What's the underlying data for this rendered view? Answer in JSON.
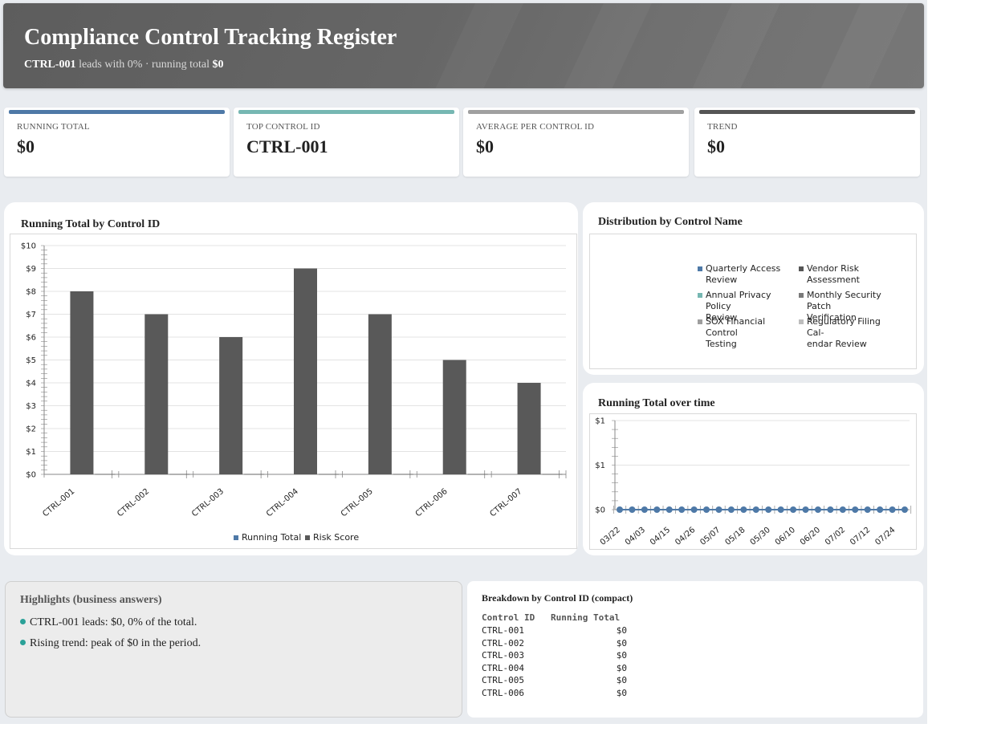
{
  "header": {
    "title": "Compliance Control Tracking Register",
    "subtitle_lead": "CTRL-001",
    "subtitle_mid": " leads with 0% · running total ",
    "subtitle_total": "$0"
  },
  "kpis": [
    {
      "label": "RUNNING TOTAL",
      "value": "$0",
      "color": "#4e79a7"
    },
    {
      "label": "TOP CONTROL ID",
      "value": "CTRL-001",
      "color": "#76b7b2"
    },
    {
      "label": "AVERAGE PER CONTROL ID",
      "value": "$0",
      "color": "#a0a0a0"
    },
    {
      "label": "TREND",
      "value": "$0",
      "color": "#555555"
    }
  ],
  "chart_data": [
    {
      "type": "bar",
      "title": "Running Total by Control ID",
      "categories": [
        "CTRL-001",
        "CTRL-002",
        "CTRL-003",
        "CTRL-004",
        "CTRL-005",
        "CTRL-006",
        "CTRL-007"
      ],
      "series": [
        {
          "name": "Running Total",
          "values": [
            0,
            0,
            0,
            0,
            0,
            0,
            0
          ],
          "color": "#4e79a7"
        },
        {
          "name": "Risk Score",
          "values": [
            8,
            7,
            6,
            9,
            7,
            5,
            4
          ],
          "color": "#595959"
        }
      ],
      "y_ticks": [
        "$0",
        "$1",
        "$2",
        "$3",
        "$4",
        "$5",
        "$6",
        "$7",
        "$8",
        "$9",
        "$10"
      ],
      "ylim": [
        0,
        10
      ],
      "legend": "bottom",
      "grid": true
    },
    {
      "type": "pie",
      "title": "Distribution by Control Name",
      "legend": "right",
      "slices": [
        {
          "name": "Quarterly Access Review",
          "lines": [
            "Quarterly Access",
            "Review"
          ],
          "value": 0,
          "color": "#4e79a7"
        },
        {
          "name": "Vendor Risk Assessment",
          "lines": [
            "Vendor Risk Assessment"
          ],
          "value": 0,
          "color": "#555555"
        },
        {
          "name": "Annual Privacy Policy Review",
          "lines": [
            "Annual Privacy Policy",
            "Review"
          ],
          "value": 0,
          "color": "#76b7b2"
        },
        {
          "name": "Monthly Security Patch Verification",
          "lines": [
            "Monthly Security Patch",
            "Verification"
          ],
          "value": 0,
          "color": "#7a7a7a"
        },
        {
          "name": "SOX Financial Control Testing",
          "lines": [
            "SOX Financial Control",
            "Testing"
          ],
          "value": 0,
          "color": "#9e9e9e"
        },
        {
          "name": "Regulatory Filing Calendar Review",
          "lines": [
            "Regulatory Filing Cal-",
            "endar Review"
          ],
          "value": 0,
          "color": "#bdbdbd"
        }
      ]
    },
    {
      "type": "line",
      "title": "Running Total over time",
      "x_ticks": [
        "03/22",
        "04/03",
        "04/15",
        "04/26",
        "05/07",
        "05/18",
        "05/30",
        "06/10",
        "06/20",
        "07/02",
        "07/12",
        "07/24"
      ],
      "point_count": 24,
      "values": [
        0,
        0,
        0,
        0,
        0,
        0,
        0,
        0,
        0,
        0,
        0,
        0,
        0,
        0,
        0,
        0,
        0,
        0,
        0,
        0,
        0,
        0,
        0,
        0
      ],
      "y_ticks": [
        "$0",
        "$1",
        "$1"
      ],
      "color": "#4e79a7",
      "grid": true
    }
  ],
  "highlights": {
    "title": "Highlights (business answers)",
    "items": [
      "CTRL-001 leads: $0, 0% of the total.",
      "Rising trend: peak of $0 in the period."
    ]
  },
  "breakdown": {
    "title": "Breakdown by Control ID (compact)",
    "col1": "Control ID",
    "col2": "Running Total",
    "rows": [
      [
        "CTRL-001",
        "$0"
      ],
      [
        "CTRL-002",
        "$0"
      ],
      [
        "CTRL-003",
        "$0"
      ],
      [
        "CTRL-004",
        "$0"
      ],
      [
        "CTRL-005",
        "$0"
      ],
      [
        "CTRL-006",
        "$0"
      ]
    ]
  }
}
